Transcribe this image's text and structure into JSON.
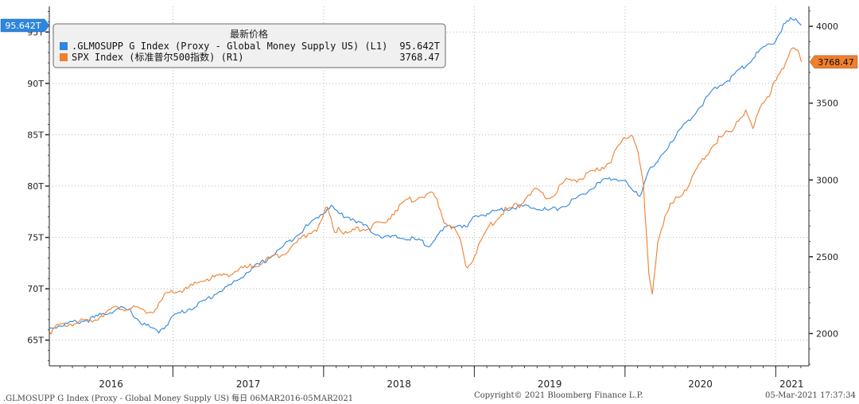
{
  "chart_data": {
    "type": "line",
    "legend": {
      "title": "最新价格",
      "position": "top-left",
      "entries": [
        {
          "label": ".GLMOSUPP G Index (Proxy - Global Money Supply US) (L1)",
          "value": "95.642T",
          "color": "#2e86de",
          "axis": "left"
        },
        {
          "label": "SPX Index (标准普尔500指数) (R1)",
          "value": "3768.47",
          "color": "#f07f2e",
          "axis": "right"
        }
      ]
    },
    "left_axis": {
      "ylim": [
        62.5,
        97.5
      ],
      "ticks": [
        65,
        70,
        75,
        80,
        85,
        90,
        95
      ],
      "tick_labels": [
        "65T",
        "70T",
        "75T",
        "80T",
        "85T",
        "90T",
        "95T"
      ],
      "marker_label": "95.642T",
      "marker_value": 95.642
    },
    "right_axis": {
      "ylim": [
        1790,
        4130
      ],
      "ticks": [
        2000,
        2500,
        3000,
        3500,
        4000
      ],
      "tick_labels": [
        "2000",
        "2500",
        "3000",
        "3500",
        "4000"
      ],
      "marker_label": "3768.47",
      "marker_value": 3768.47
    },
    "x_axis": {
      "xlim": [
        2016.18,
        2021.22
      ],
      "year_labels": [
        "2016",
        "2017",
        "2018",
        "2019",
        "2020",
        "2021"
      ],
      "year_boundaries": [
        2017,
        2018,
        2019,
        2020,
        2021
      ]
    },
    "series": [
      {
        "name": ".GLMOSUPP G Index",
        "axis": "left",
        "color": "#2e86de",
        "x": [
          2016.18,
          2016.3,
          2016.45,
          2016.55,
          2016.65,
          2016.72,
          2016.78,
          2016.85,
          2016.9,
          2016.95,
          2017.0,
          2017.1,
          2017.2,
          2017.3,
          2017.4,
          2017.5,
          2017.6,
          2017.7,
          2017.8,
          2017.9,
          2018.0,
          2018.05,
          2018.1,
          2018.2,
          2018.3,
          2018.4,
          2018.5,
          2018.6,
          2018.7,
          2018.8,
          2018.9,
          2018.95,
          2019.0,
          2019.1,
          2019.2,
          2019.3,
          2019.4,
          2019.5,
          2019.6,
          2019.7,
          2019.8,
          2019.9,
          2020.0,
          2020.05,
          2020.1,
          2020.15,
          2020.2,
          2020.25,
          2020.3,
          2020.4,
          2020.5,
          2020.6,
          2020.7,
          2020.8,
          2020.9,
          2021.0,
          2021.05,
          2021.1,
          2021.15,
          2021.17
        ],
        "values": [
          66.2,
          66.6,
          67.0,
          67.6,
          68.1,
          67.8,
          66.8,
          66.2,
          65.8,
          66.4,
          67.3,
          68.0,
          68.7,
          69.7,
          70.5,
          71.7,
          72.6,
          73.7,
          75.0,
          76.2,
          77.5,
          78.1,
          77.3,
          76.8,
          75.8,
          75.0,
          75.0,
          74.8,
          74.3,
          75.8,
          76.3,
          75.9,
          77.0,
          77.4,
          77.8,
          78.0,
          78.0,
          77.6,
          78.1,
          79.0,
          80.0,
          80.8,
          80.5,
          79.5,
          79.0,
          81.5,
          82.0,
          83.0,
          84.3,
          86.0,
          87.8,
          89.5,
          90.5,
          91.8,
          93.2,
          94.2,
          95.6,
          96.2,
          96.0,
          95.64
        ]
      },
      {
        "name": "SPX Index",
        "axis": "right",
        "color": "#f07f2e",
        "x": [
          2016.18,
          2016.25,
          2016.35,
          2016.42,
          2016.48,
          2016.55,
          2016.65,
          2016.75,
          2016.85,
          2016.9,
          2016.95,
          2017.0,
          2017.1,
          2017.2,
          2017.3,
          2017.4,
          2017.5,
          2017.6,
          2017.7,
          2017.8,
          2017.9,
          2017.97,
          2018.02,
          2018.08,
          2018.1,
          2018.15,
          2018.2,
          2018.3,
          2018.4,
          2018.5,
          2018.6,
          2018.7,
          2018.75,
          2018.8,
          2018.85,
          2018.9,
          2018.95,
          2019.0,
          2019.1,
          2019.2,
          2019.3,
          2019.35,
          2019.4,
          2019.5,
          2019.6,
          2019.7,
          2019.8,
          2019.9,
          2019.97,
          2020.0,
          2020.05,
          2020.08,
          2020.12,
          2020.16,
          2020.18,
          2020.22,
          2020.3,
          2020.4,
          2020.5,
          2020.6,
          2020.7,
          2020.75,
          2020.8,
          2020.85,
          2020.9,
          2020.95,
          2021.0,
          2021.05,
          2021.1,
          2021.13,
          2021.17
        ],
        "values": [
          2010,
          2050,
          2070,
          2080,
          2090,
          2140,
          2170,
          2160,
          2140,
          2170,
          2250,
          2270,
          2290,
          2350,
          2370,
          2400,
          2430,
          2470,
          2510,
          2570,
          2660,
          2690,
          2820,
          2650,
          2700,
          2640,
          2670,
          2690,
          2720,
          2830,
          2880,
          2910,
          2880,
          2730,
          2700,
          2620,
          2420,
          2510,
          2700,
          2800,
          2840,
          2900,
          2930,
          2880,
          2990,
          3010,
          3050,
          3120,
          3230,
          3280,
          3300,
          3210,
          2990,
          2340,
          2260,
          2630,
          2830,
          2940,
          3100,
          3250,
          3320,
          3400,
          3440,
          3330,
          3500,
          3550,
          3640,
          3720,
          3860,
          3880,
          3768.47
        ]
      }
    ]
  },
  "footer": {
    "left": ".GLMOSUPP G Index (Proxy - Global Money Supply US)  每日 06MAR2016-05MAR2021",
    "center": "Copyright© 2021 Bloomberg Finance L.P.",
    "right": "05-Mar-2021 17:37:34"
  }
}
